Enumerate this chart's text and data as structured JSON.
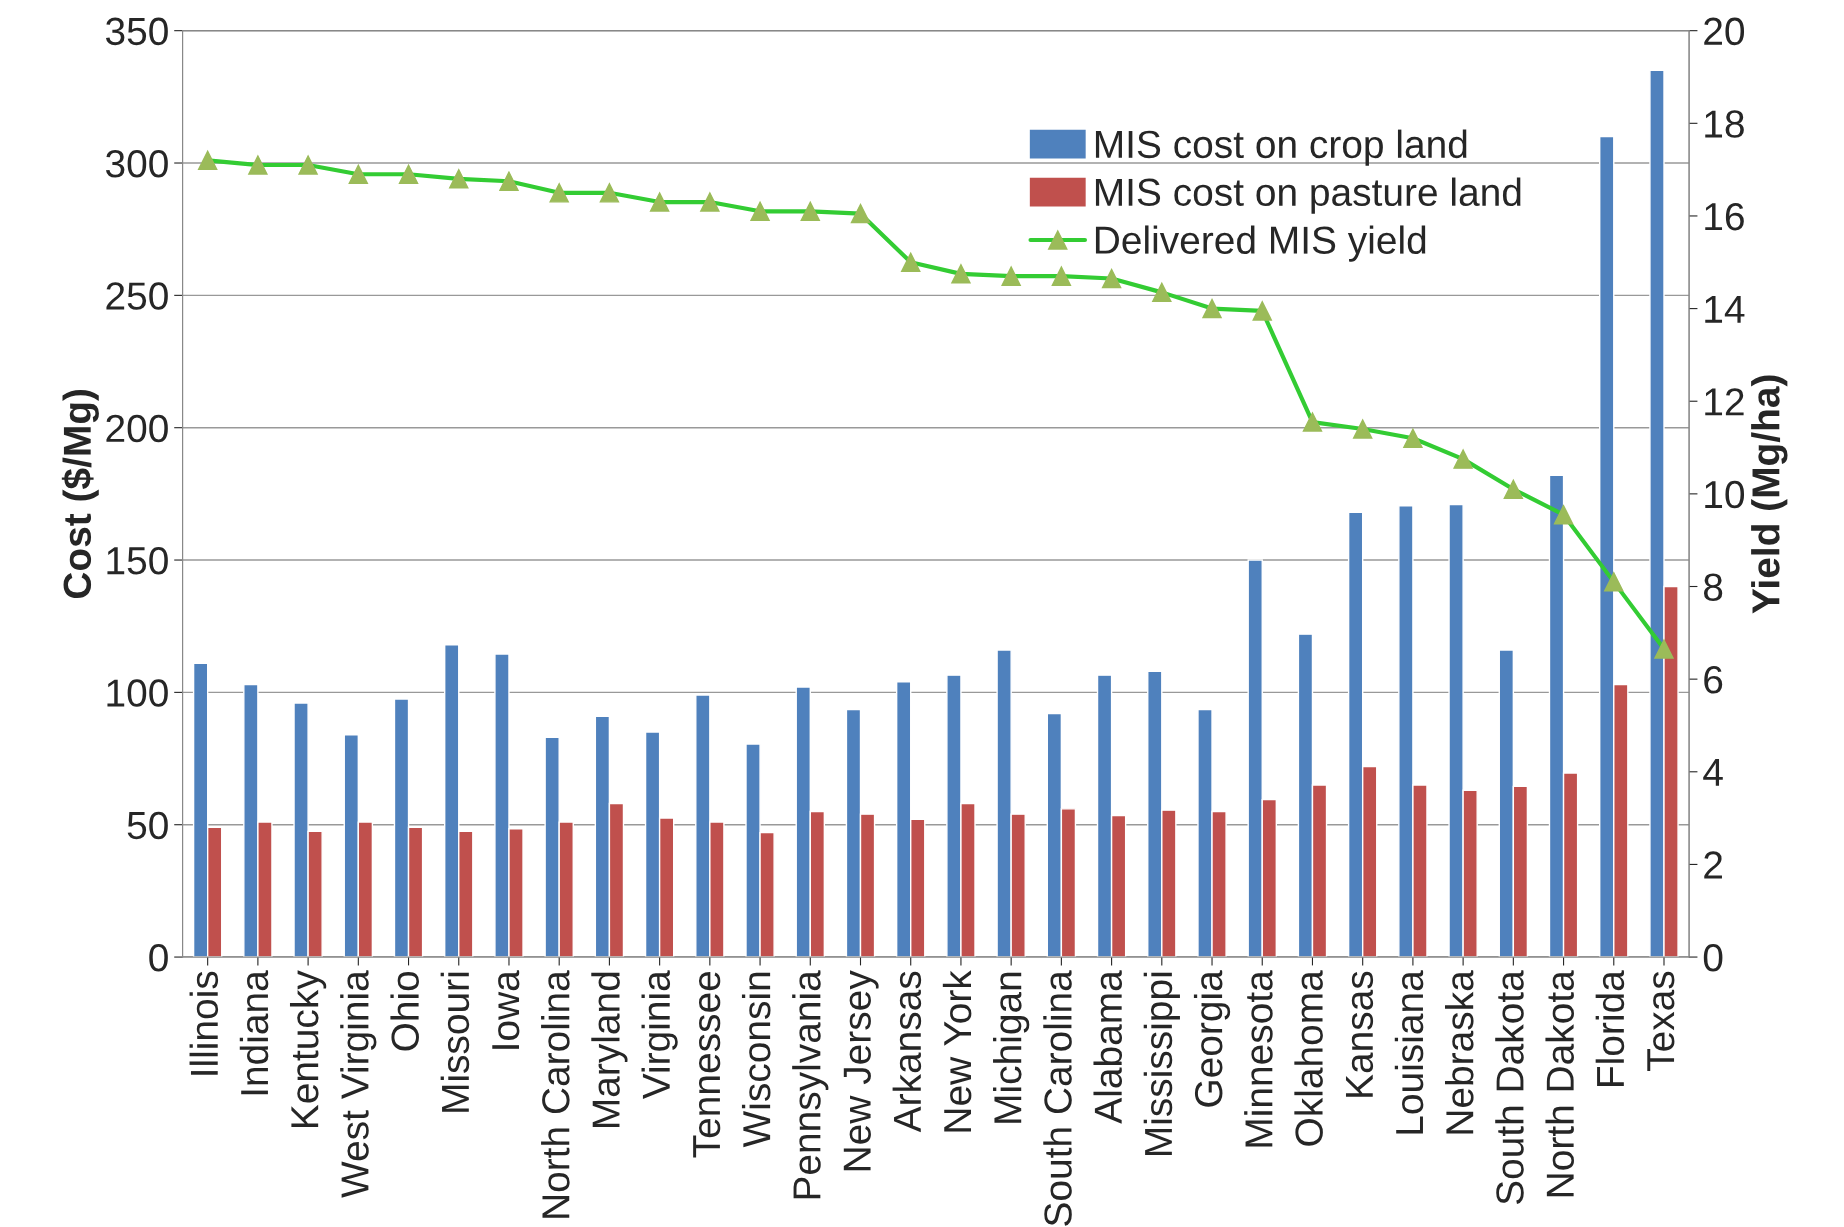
{
  "chart_data": {
    "type": "bar",
    "ylabel": "Cost ($/Mg)",
    "y2label": "Yield (Mg/ha)",
    "categories": [
      "Illinois",
      "Indiana",
      "Kentucky",
      "West Virginia",
      "Ohio",
      "Missouri",
      "Iowa",
      "North Carolina",
      "Maryland",
      "Virginia",
      "Tennessee",
      "Wisconsin",
      "Pennsylvania",
      "New Jersey",
      "Arkansas",
      "New York",
      "Michigan",
      "South Carolina",
      "Alabama",
      "Mississippi",
      "Georgia",
      "Minnesota",
      "Oklahoma",
      "Kansas",
      "Louisiana",
      "Nebraska",
      "South Dakota",
      "North Dakota",
      "Florida",
      "Texas"
    ],
    "series": [
      {
        "name": "MIS cost on crop land",
        "color": "#4f81bd",
        "values": [
          111,
          103,
          96,
          84,
          97.5,
          118,
          114.5,
          83,
          91,
          85,
          99,
          80.5,
          102,
          93.5,
          104,
          106.5,
          116,
          92,
          106.5,
          108,
          93.5,
          150,
          122,
          168,
          170.5,
          171,
          116,
          182,
          310,
          335
        ]
      },
      {
        "name": "MIS cost on pasture land",
        "color": "#c0504d",
        "values": [
          49,
          51,
          47.5,
          51,
          49,
          47.5,
          48.5,
          51,
          58,
          52.5,
          51,
          47,
          55,
          54,
          52,
          58,
          54,
          56,
          53.5,
          55.5,
          55,
          59.5,
          65,
          72,
          65,
          63,
          64.5,
          69.5,
          103,
          140
        ]
      },
      {
        "name": "Delivered MIS yield",
        "type": "line",
        "axis": "y2",
        "color": "#33cc33",
        "marker": "triangle",
        "values": [
          17.2,
          17.1,
          17.1,
          16.9,
          16.9,
          16.8,
          16.75,
          16.5,
          16.5,
          16.3,
          16.3,
          16.1,
          16.1,
          16.05,
          15.0,
          14.75,
          14.7,
          14.7,
          14.65,
          14.35,
          14.0,
          13.95,
          11.55,
          11.4,
          11.2,
          10.75,
          10.1,
          9.55,
          8.1,
          6.65
        ]
      }
    ],
    "ylim": [
      0,
      350
    ],
    "yticks": [
      0,
      50,
      100,
      150,
      200,
      250,
      300,
      350
    ],
    "y2lim": [
      0,
      20
    ],
    "y2ticks": [
      0,
      2,
      4,
      6,
      8,
      10,
      12,
      14,
      16,
      18,
      20
    ],
    "grid": "y",
    "legend": "top right"
  }
}
